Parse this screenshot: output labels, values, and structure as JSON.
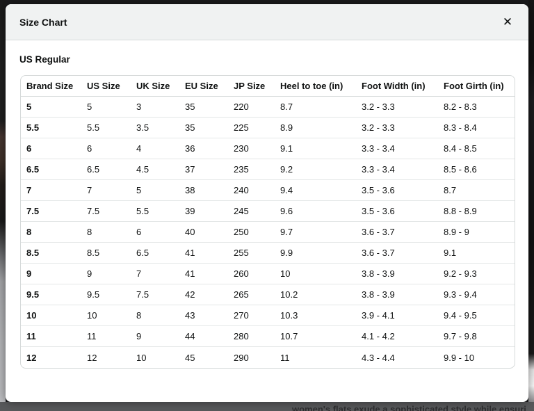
{
  "modal": {
    "title": "Size Chart",
    "section_label": "US Regular"
  },
  "icons": {
    "close": "✕"
  },
  "size_table": {
    "columns": [
      "Brand Size",
      "US Size",
      "UK Size",
      "EU Size",
      "JP Size",
      "Heel to toe (in)",
      "Foot Width (in)",
      "Foot Girth (in)"
    ],
    "rows": [
      [
        "5",
        "5",
        "3",
        "35",
        "220",
        "8.7",
        "3.2 - 3.3",
        "8.2 - 8.3"
      ],
      [
        "5.5",
        "5.5",
        "3.5",
        "35",
        "225",
        "8.9",
        "3.2 - 3.3",
        "8.3 - 8.4"
      ],
      [
        "6",
        "6",
        "4",
        "36",
        "230",
        "9.1",
        "3.3 - 3.4",
        "8.4 - 8.5"
      ],
      [
        "6.5",
        "6.5",
        "4.5",
        "37",
        "235",
        "9.2",
        "3.3 - 3.4",
        "8.5 - 8.6"
      ],
      [
        "7",
        "7",
        "5",
        "38",
        "240",
        "9.4",
        "3.5 - 3.6",
        "8.7"
      ],
      [
        "7.5",
        "7.5",
        "5.5",
        "39",
        "245",
        "9.6",
        "3.5 - 3.6",
        "8.8 - 8.9"
      ],
      [
        "8",
        "8",
        "6",
        "40",
        "250",
        "9.7",
        "3.6 - 3.7",
        "8.9 - 9"
      ],
      [
        "8.5",
        "8.5",
        "6.5",
        "41",
        "255",
        "9.9",
        "3.6 - 3.7",
        "9.1"
      ],
      [
        "9",
        "9",
        "7",
        "41",
        "260",
        "10",
        "3.8 - 3.9",
        "9.2 - 9.3"
      ],
      [
        "9.5",
        "9.5",
        "7.5",
        "42",
        "265",
        "10.2",
        "3.8 - 3.9",
        "9.3 - 9.4"
      ],
      [
        "10",
        "10",
        "8",
        "43",
        "270",
        "10.3",
        "3.9 - 4.1",
        "9.4 - 9.5"
      ],
      [
        "11",
        "11",
        "9",
        "44",
        "280",
        "10.7",
        "4.1 - 4.2",
        "9.7 - 9.8"
      ],
      [
        "12",
        "12",
        "10",
        "45",
        "290",
        "11",
        "4.3 - 4.4",
        "9.9 - 10"
      ]
    ]
  },
  "page_background": {
    "partial_text": "women's flats exude a sophisticated style while ensuri"
  },
  "colors": {
    "modal_header_bg": "#f0f2f2",
    "table_border": "#d5d9d9",
    "row_divider": "#e4e7e7",
    "text": "#0f1111",
    "backdrop_dark": "#1b1b1d",
    "backdrop_bottom": "#58595b"
  }
}
